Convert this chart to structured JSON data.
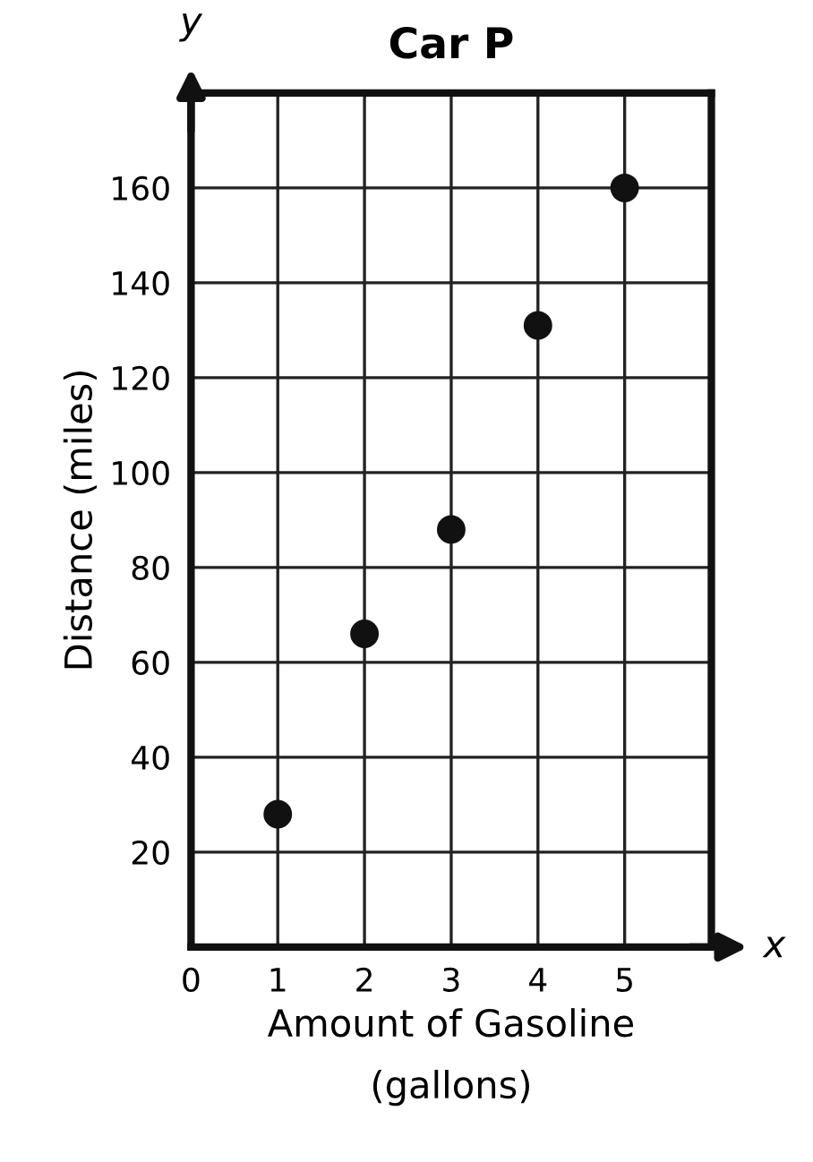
{
  "chart_data": {
    "type": "scatter",
    "title": "Car P",
    "xlabel": "Amount of Gasoline\n(gallons)",
    "ylabel": "Distance (miles)",
    "annotations": [
      "y",
      "x"
    ],
    "x": [
      1,
      2,
      3,
      4,
      5
    ],
    "series": [
      {
        "color": "#111111",
        "values": [
          28,
          66,
          88,
          131,
          160
        ]
      }
    ],
    "xlim": [
      0,
      6
    ],
    "ylim": [
      0,
      180
    ],
    "xticks": [
      0,
      1,
      2,
      3,
      4,
      5
    ],
    "yticks": [
      20,
      40,
      60,
      80,
      100,
      120,
      140,
      160
    ],
    "grid": true,
    "marker": "circle"
  }
}
